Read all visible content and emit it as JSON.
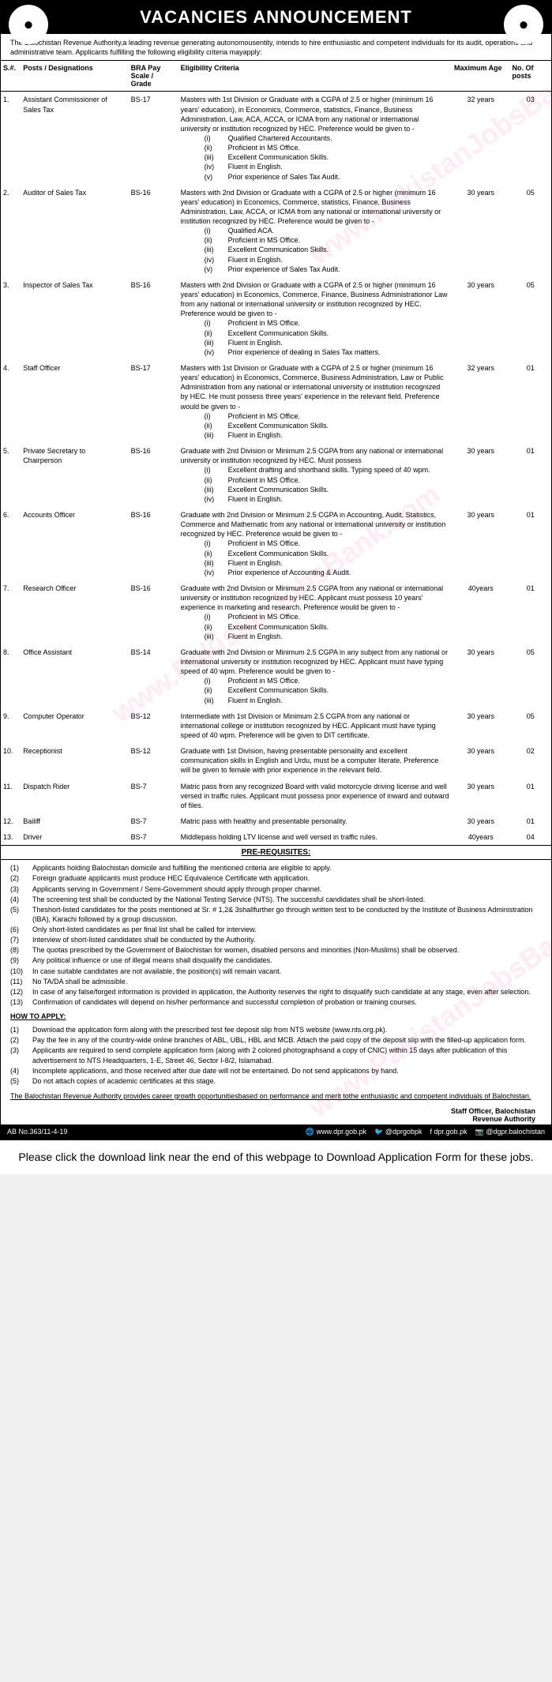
{
  "header": {
    "title": "VACANCIES ANNOUNCEMENT"
  },
  "intro": "The Balochistan Revenue Authority,a leading revenue generating autonomousentity, intends to hire enthusiastic and competent individuals for its audit, operations and administrative team. Applicants fulfilling the following eligibility criteria mayapply:",
  "columns": {
    "sn": "S.#.",
    "post": "Posts / Designations",
    "grade": "BRA Pay Scale / Grade",
    "elig": "Eligibility Criteria",
    "age": "Maximum Age",
    "num": "No. Of posts"
  },
  "rows": [
    {
      "sn": "1.",
      "post": "Assistant Commissioner of Sales Tax",
      "grade": "BS-17",
      "elig": "Masters with 1st Division or Graduate with a CGPA of 2.5 or higher (minimum 16 years' education), in Economics, Commerce, statistics, Finance, Business Administration, Law, ACA, ACCA, or ICMA from any national or international university or institution recognized by HEC. Preference would be given to -",
      "roman": [
        "Qualified Chartered Accountants.",
        "Proficient in MS Office.",
        "Excellent Communication Skills.",
        "Fluent in English.",
        "Prior experience of Sales Tax Audit."
      ],
      "age": "32 years",
      "num": "03"
    },
    {
      "sn": "2.",
      "post": "Auditor of Sales Tax",
      "grade": "BS-16",
      "elig": "Masters with 2nd Division or Graduate with a CGPA of 2.5 or higher (minimum 16 years' education) in Economics, Commerce, statistics, Finance, Business Administration, Law, ACCA, or ICMA from any national or international university or institution recognized by HEC. Preference would be given to -",
      "roman": [
        "Qualified ACA.",
        "Proficient in MS Office.",
        "Excellent Communication Skills.",
        "Fluent in English.",
        "Prior experience of Sales Tax Audit."
      ],
      "age": "30 years",
      "num": "05"
    },
    {
      "sn": "3.",
      "post": "Inspector of Sales Tax",
      "grade": "BS-16",
      "elig": "Masters with 2nd Division or Graduate with a CGPA of 2.5 or higher (minimum 16 years' education) in Economics, Commerce, Finance, Business Administrationor Law from any national or international university or institution recognized by HEC. Preference would be given to -",
      "roman": [
        "Proficient in MS Office.",
        "Excellent Communication Skills.",
        "Fluent in English.",
        "Prior experience of dealing in Sales Tax matters."
      ],
      "age": "30 years",
      "num": "05"
    },
    {
      "sn": "4.",
      "post": "Staff Officer",
      "grade": "BS-17",
      "elig": "Masters with 1st Division or Graduate with a CGPA of 2.5 or higher (minimum 16 years' education) in Economics, Commerce, Business Administration, Law or Public Administration from any national or international university or institution recognized by HEC. He must possess three years' experience in the relevant field. Preference would be given to -",
      "roman": [
        "Proficient in MS Office.",
        "Excellent Communication Skills.",
        "Fluent in English."
      ],
      "age": "32 years",
      "num": "01"
    },
    {
      "sn": "5.",
      "post": "Private Secretary to Chairperson",
      "grade": "BS-16",
      "elig": "Graduate with 2nd Division or Minimum 2.5 CGPA from any national or international university or institution recognized by HEC. Must possess",
      "roman": [
        "Excellent drafting and shorthand skills. Typing speed of 40 wpm.",
        "Proficient in MS Office.",
        "Excellent Communication Skills.",
        "Fluent in English."
      ],
      "age": "30 years",
      "num": "01"
    },
    {
      "sn": "6.",
      "post": "Accounts Officer",
      "grade": "BS-16",
      "elig": "Graduate with 2nd Division or Minimum 2.5 CGPA in Accounting, Audit, Statistics, Commerce and Mathematic from any national or international university or institution recognized by HEC. Preference would be given to -",
      "roman": [
        "Proficient in MS Office.",
        "Excellent Communication Skills.",
        "Fluent in English.",
        "Prior experience of Accounting & Audit."
      ],
      "age": "30 years",
      "num": "01"
    },
    {
      "sn": "7.",
      "post": "Research Officer",
      "grade": "BS-16",
      "elig": "Graduate with 2nd Division or Minimum 2.5 CGPA from any national or international university or institution recognized by HEC. Applicant must possess 10 years' experience in marketing and research. Preference would be given to -",
      "roman": [
        "Proficient in MS Office.",
        "Excellent Communication Skills.",
        "Fluent in English."
      ],
      "age": "40years",
      "num": "01"
    },
    {
      "sn": "8.",
      "post": "Office Assistant",
      "grade": "BS-14",
      "elig": "Graduate with 2nd Division or Minimum 2.5 CGPA in any subject from any national or international university or institution recognized by HEC. Applicant must have typing speed of 40 wpm. Preference would be given to -",
      "roman": [
        "Proficient in MS Office.",
        "Excellent Communication Skills.",
        "Fluent in English."
      ],
      "age": "30 years",
      "num": "05"
    },
    {
      "sn": "9.",
      "post": "Computer Operator",
      "grade": "BS-12",
      "elig": "Intermediate with 1st Division or Minimum 2.5 CGPA from any national or international college or institution recognized by HEC. Applicant must have typing speed of 40 wpm. Preference will be given to DIT certificate.",
      "roman": [],
      "age": "30 years",
      "num": "05"
    },
    {
      "sn": "10.",
      "post": "Receptionist",
      "grade": "BS-12",
      "elig": "Graduate with 1st Division, having presentable personality and excellent communication skills in English and Urdu, must be a computer literate. Preference will be given to female with prior experience in the relevant field.",
      "roman": [],
      "age": "30 years",
      "num": "02"
    },
    {
      "sn": "11.",
      "post": "Dispatch Rider",
      "grade": "BS-7",
      "elig": "Matric pass from any recognized Board with valid motorcycle driving license and well versed in traffic rules. Applicant must possess prior experience of inward and outward of files.",
      "roman": [],
      "age": "30 years",
      "num": "01"
    },
    {
      "sn": "12.",
      "post": "Bailiff",
      "grade": "BS-7",
      "elig": "Matric pass with healthy and presentable personality.",
      "roman": [],
      "age": "30 years",
      "num": "01"
    },
    {
      "sn": "13.",
      "post": "Driver",
      "grade": "BS-7",
      "elig": "Middlepass holding LTV license and well versed in traffic rules.",
      "roman": [],
      "age": "40years",
      "num": "04"
    }
  ],
  "prereq_title": "PRE-REQUISITES:",
  "prereq": [
    "Applicants holding Balochistan domicile and fulfilling the mentioned criteria are eligible to apply.",
    "Foreign graduate applicants must produce HEC Equivalence Certificate with application.",
    "Applicants serving in Government / Semi-Government should apply through proper channel.",
    "The screening test shall be conducted by the National Testing Service (NTS). The successful candidates shall be short-listed.",
    "Theshort-listed candidates for the posts mentioned at Sr. # 1,2& 3shallfurther go through written test to be conducted by the Institute of Business Administration (IBA), Karachi followed by a group discussion.",
    "Only short-listed candidates as per final list shall be called for interview.",
    "Interview of short-listed candidates shall be conducted by the Authority.",
    "The quotas prescribed by the Government of Balochistan for women, disabled persons and minorities (Non-Muslims) shall be observed.",
    "Any political influence or use of illegal means shall disqualify the candidates.",
    "In case suitable candidates are not available, the position(s) will remain vacant.",
    "No TA/DA shall be admissible.",
    "In case of any false/forged information is provided in application, the Authority reserves the right to disqualify such candidate at any stage, even after selection.",
    "Confirmation of candidates will depend on his/her performance and successful completion of probation or training courses."
  ],
  "howto_title": "HOW TO APPLY:",
  "howto": [
    "Download the application form along with the prescribed test fee deposit slip from NTS website (www.nts.org.pk).",
    "Pay the fee in any of the country-wide online branches of ABL, UBL, HBL and MCB. Attach the paid copy of the deposit slip with the filled-up application form.",
    "Applicants are required to send complete application form (along with 2 colored photographsand a copy of CNIC) within 15 days after publication of this advertisement to NTS Headquarters, 1-E, Street 46, Sector I-8/2, Islamabad.",
    "Incomplete applications, and those received after due date will not be entertained. Do not send applications by hand.",
    "Do not attach copies of academic certificates at this stage."
  ],
  "footer_line": "The Balochistan Revenue Authority provides career growth opportunitiesbased on performance and merit tothe enthusiastic and competent individuals of Balochistan.",
  "signature": {
    "line1": "Staff Officer, Balochistan",
    "line2": "Revenue Authority"
  },
  "bottom": {
    "ab": "AB No.363/11-4-19",
    "web": "www.dpr.gob.pk",
    "tw": "@dprgobpk",
    "fb": "dpr.gob.pk",
    "insta": "@dgpr.balochistan"
  },
  "download_msg": "Please click the download link near the end of this webpage to Download Application Form for these jobs.",
  "watermark": "www.PakistanJobsBank.com",
  "romanNums": [
    "(i)",
    "(ii)",
    "(iii)",
    "(iv)",
    "(v)"
  ]
}
